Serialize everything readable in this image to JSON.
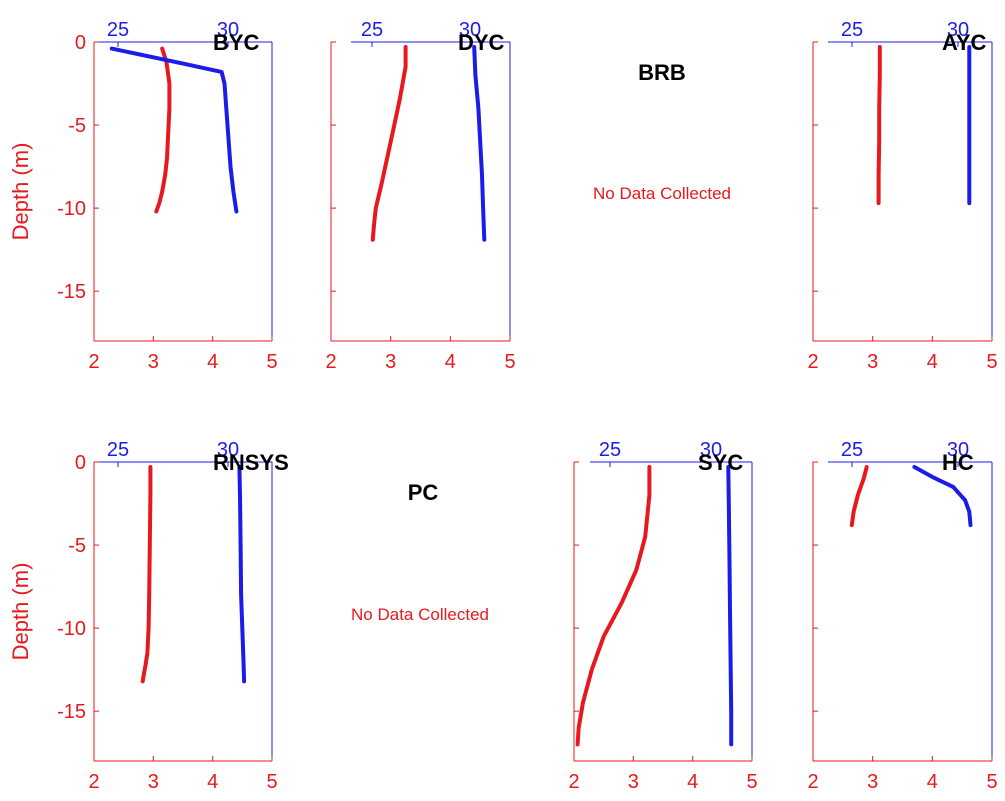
{
  "chart_data": [
    {
      "type": "line",
      "title": "BYC",
      "ylabel": "Depth (m)",
      "ylim": [
        -18,
        0
      ],
      "yticks": [
        "0",
        "-5",
        "-10",
        "-15"
      ],
      "xlim_bottom": [
        2,
        5
      ],
      "xticks_bottom": [
        "2",
        "3",
        "4",
        "5"
      ],
      "xticks_top": [
        "25",
        "30"
      ],
      "series": [
        {
          "color": "#e8191e",
          "axis": "bottom",
          "x": [
            3.15,
            3.22,
            3.27,
            3.27,
            3.25,
            3.23,
            3.2,
            3.15,
            3.1,
            3.05
          ],
          "y": [
            -0.4,
            -1.2,
            -2.5,
            -4.0,
            -5.5,
            -7.0,
            -8.0,
            -9.0,
            -9.7,
            -10.2
          ]
        },
        {
          "color": "#1c1ce8",
          "axis": "bottom",
          "x": [
            2.3,
            3.5,
            4.15,
            4.2,
            4.25,
            4.3,
            4.35,
            4.4
          ],
          "y": [
            -0.4,
            -1.3,
            -1.8,
            -2.5,
            -5.0,
            -7.5,
            -9.0,
            -10.2
          ]
        }
      ]
    },
    {
      "type": "line",
      "title": "DYC",
      "ylim": [
        -18,
        0
      ],
      "xlim_bottom": [
        2,
        5
      ],
      "xticks_bottom": [
        "2",
        "3",
        "4",
        "5"
      ],
      "xticks_top": [
        "25",
        "30"
      ],
      "series": [
        {
          "color": "#e8191e",
          "axis": "bottom",
          "x": [
            3.25,
            3.25,
            3.15,
            3.0,
            2.85,
            2.75,
            2.72,
            2.7
          ],
          "y": [
            -0.3,
            -1.5,
            -3.5,
            -6.0,
            -8.5,
            -10.0,
            -11.0,
            -11.9
          ]
        },
        {
          "color": "#1c1ce8",
          "axis": "bottom",
          "x": [
            4.4,
            4.42,
            4.47,
            4.5,
            4.53,
            4.55,
            4.57
          ],
          "y": [
            -0.3,
            -2.0,
            -4.0,
            -6.0,
            -8.0,
            -10.0,
            -11.9
          ]
        }
      ]
    },
    {
      "type": "line",
      "title": "BRB",
      "annotation": "No Data Collected",
      "series": []
    },
    {
      "type": "line",
      "title": "AYC",
      "ylim": [
        -18,
        0
      ],
      "xlim_bottom": [
        2,
        5
      ],
      "xticks_bottom": [
        "2",
        "3",
        "4",
        "5"
      ],
      "xticks_top": [
        "25",
        "30"
      ],
      "series": [
        {
          "color": "#e8191e",
          "axis": "bottom",
          "x": [
            3.12,
            3.12,
            3.11,
            3.11,
            3.1,
            3.1
          ],
          "y": [
            -0.3,
            -2.0,
            -4.0,
            -6.0,
            -8.0,
            -9.7
          ]
        },
        {
          "color": "#1c1ce8",
          "axis": "bottom",
          "x": [
            4.62,
            4.62,
            4.62,
            4.62,
            4.62
          ],
          "y": [
            -0.3,
            -3.0,
            -6.0,
            -8.5,
            -9.7
          ]
        }
      ]
    },
    {
      "type": "line",
      "title": "RNSYS",
      "ylabel": "Depth (m)",
      "ylim": [
        -18,
        0
      ],
      "yticks": [
        "0",
        "-5",
        "-10",
        "-15"
      ],
      "xlim_bottom": [
        2,
        5
      ],
      "xticks_bottom": [
        "2",
        "3",
        "4",
        "5"
      ],
      "xticks_top": [
        "25",
        "30"
      ],
      "series": [
        {
          "color": "#e8191e",
          "axis": "bottom",
          "x": [
            2.95,
            2.95,
            2.94,
            2.93,
            2.92,
            2.9,
            2.87,
            2.84,
            2.82
          ],
          "y": [
            -0.3,
            -2.0,
            -5.0,
            -8.0,
            -10.0,
            -11.5,
            -12.2,
            -12.8,
            -13.2
          ]
        },
        {
          "color": "#1c1ce8",
          "axis": "bottom",
          "x": [
            4.45,
            4.46,
            4.47,
            4.48,
            4.5,
            4.52,
            4.53
          ],
          "y": [
            -0.3,
            -2.0,
            -5.0,
            -8.0,
            -10.0,
            -12.0,
            -13.2
          ]
        }
      ]
    },
    {
      "type": "line",
      "title": "PC",
      "annotation": "No Data Collected",
      "series": []
    },
    {
      "type": "line",
      "title": "SYC",
      "ylim": [
        -18,
        0
      ],
      "xlim_bottom": [
        2,
        5
      ],
      "xticks_bottom": [
        "2",
        "3",
        "4",
        "5"
      ],
      "xticks_top": [
        "25",
        "30"
      ],
      "series": [
        {
          "color": "#e8191e",
          "axis": "bottom",
          "x": [
            3.27,
            3.27,
            3.2,
            3.05,
            2.8,
            2.5,
            2.3,
            2.15,
            2.08,
            2.06
          ],
          "y": [
            -0.3,
            -2.0,
            -4.5,
            -6.5,
            -8.5,
            -10.5,
            -12.5,
            -14.5,
            -16.0,
            -17.0
          ]
        },
        {
          "color": "#1c1ce8",
          "axis": "bottom",
          "x": [
            4.6,
            4.61,
            4.62,
            4.63,
            4.64,
            4.65,
            4.65
          ],
          "y": [
            -0.3,
            -3.0,
            -6.0,
            -9.0,
            -12.0,
            -15.0,
            -17.0
          ]
        }
      ]
    },
    {
      "type": "line",
      "title": "HC",
      "ylim": [
        -18,
        0
      ],
      "xlim_bottom": [
        2,
        5
      ],
      "xticks_bottom": [
        "2",
        "3",
        "4",
        "5"
      ],
      "xticks_top": [
        "25",
        "30"
      ],
      "series": [
        {
          "color": "#e8191e",
          "axis": "bottom",
          "x": [
            2.9,
            2.85,
            2.75,
            2.68,
            2.65
          ],
          "y": [
            -0.3,
            -1.0,
            -2.0,
            -3.0,
            -3.8
          ]
        },
        {
          "color": "#1c1ce8",
          "axis": "bottom",
          "x": [
            3.7,
            4.0,
            4.35,
            4.55,
            4.62,
            4.64
          ],
          "y": [
            -0.3,
            -0.9,
            -1.5,
            -2.3,
            -3.0,
            -3.8
          ]
        }
      ]
    }
  ]
}
